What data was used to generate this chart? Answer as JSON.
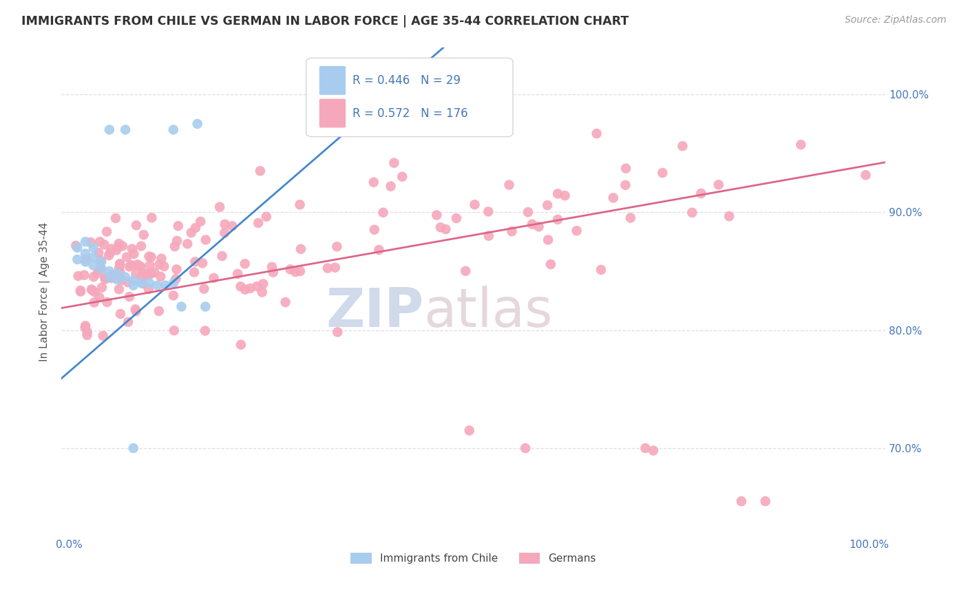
{
  "title": "IMMIGRANTS FROM CHILE VS GERMAN IN LABOR FORCE | AGE 35-44 CORRELATION CHART",
  "source_text": "Source: ZipAtlas.com",
  "ylabel": "In Labor Force | Age 35-44",
  "xlim": [
    -0.01,
    1.02
  ],
  "ylim": [
    0.625,
    1.04
  ],
  "yticks": [
    0.7,
    0.8,
    0.9,
    1.0
  ],
  "xticks": [
    0.0,
    0.2,
    0.4,
    0.6,
    0.8,
    1.0
  ],
  "chile_color": "#a8ccee",
  "german_color": "#f5a8bb",
  "chile_line_color": "#4488cc",
  "german_line_color": "#dd6688",
  "background_color": "#ffffff",
  "grid_color": "#ddddee",
  "chile_R": 0.446,
  "chile_N": 29,
  "german_R": 0.572,
  "german_N": 176,
  "legend_R_color": "#4477bb",
  "legend_N_color": "#33aa33",
  "watermark_zip_color": "#c8d4e8",
  "watermark_atlas_color": "#d8c4cc"
}
